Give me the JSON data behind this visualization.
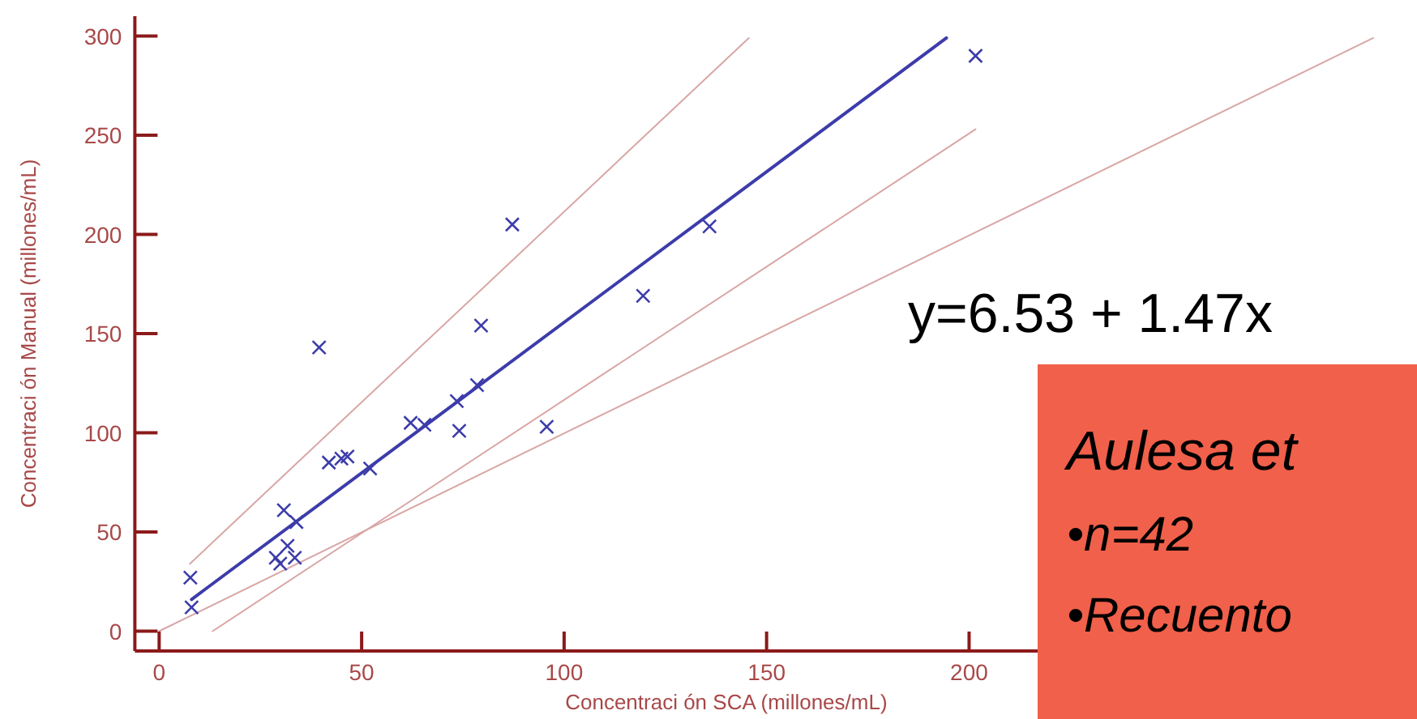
{
  "chart_data": {
    "type": "scatter",
    "xlabel": "Concentraci ón SCA (millones/mL)",
    "ylabel": "Concentraci ón Manual (millones/mL)",
    "xlim": [
      -6,
      305
    ],
    "ylim": [
      -10,
      310
    ],
    "xticks": [
      0,
      50,
      100,
      150,
      200
    ],
    "yticks": [
      0,
      50,
      100,
      150,
      200,
      250,
      300
    ],
    "grid": false,
    "legend": false,
    "annotations": [
      "y=6.53 + 1.47x",
      "Aulesa et",
      "•n=42",
      "•Recuento"
    ],
    "series": [
      {
        "marker": "cross",
        "color": "#3c3caa",
        "x": [
          7.7,
          8,
          30.8,
          33.9,
          31.7,
          28.8,
          29.9,
          33.5,
          39.5,
          41.9,
          45,
          46.5,
          52.1,
          62.1,
          65.5,
          73.5,
          74.1,
          78.5,
          79.5,
          87.2,
          95.7,
          119.5,
          135.9,
          201.6
        ],
        "values": [
          27,
          12,
          61,
          55,
          43,
          37,
          34,
          37,
          143,
          85,
          87,
          88,
          82,
          105,
          104,
          116,
          101,
          124,
          154,
          205,
          103,
          169,
          204,
          290
        ]
      },
      {
        "type": "line",
        "color": "#3c3caa",
        "x": [
          8,
          194.4
        ],
        "values": [
          16,
          299
        ]
      },
      {
        "type": "line",
        "color": "#d9a6a6",
        "x": [
          7.6,
          145.6
        ],
        "values": [
          34,
          299
        ]
      },
      {
        "type": "line",
        "color": "#d9a6a6",
        "x": [
          13.2,
          201.6
        ],
        "values": [
          0,
          253
        ]
      },
      {
        "type": "line",
        "color": "#d9a6a6",
        "x": [
          0,
          299.8
        ],
        "values": [
          0,
          299
        ]
      }
    ]
  }
}
